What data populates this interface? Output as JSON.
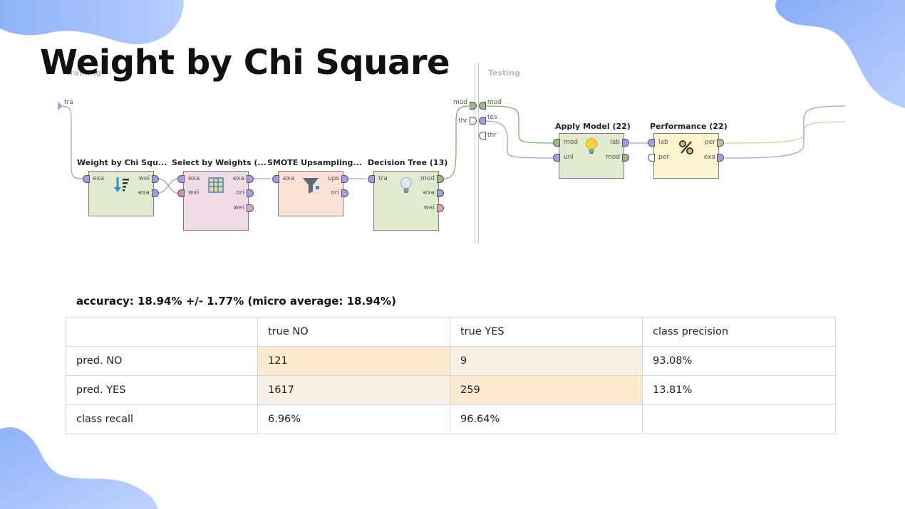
{
  "slide": {
    "title": "Weight by Chi Square"
  },
  "process": {
    "sections": {
      "training": "Training",
      "testing": "Testing"
    },
    "input_port": "tra",
    "operators": [
      {
        "name": "Weight by Chi Squ...",
        "in_ports": [
          "exa"
        ],
        "out_ports": [
          "wei",
          "exa"
        ],
        "icon": "sort-weights-icon",
        "color": "#dfeacf"
      },
      {
        "name": "Select by Weights (...",
        "in_ports": [
          "exa",
          "wei"
        ],
        "out_ports": [
          "exa",
          "ori",
          "wei"
        ],
        "icon": "table-select-icon",
        "color": "#efdbe8"
      },
      {
        "name": "SMOTE Upsampling...",
        "in_ports": [
          "exa"
        ],
        "out_ports": [
          "ups",
          "ori"
        ],
        "icon": "funnel-icon",
        "color": "#fbe1d3"
      },
      {
        "name": "Decision Tree (13)",
        "in_ports": [
          "tra"
        ],
        "out_ports": [
          "mod",
          "exa",
          "wei"
        ],
        "icon": "lightbulb-icon",
        "color": "#dfeacf"
      },
      {
        "name": "Apply Model (22)",
        "in_ports": [
          "mod",
          "unl"
        ],
        "out_ports": [
          "lab",
          "mod"
        ],
        "icon": "lightbulb-on-icon",
        "color": "#dfeacf"
      },
      {
        "name": "Performance (22)",
        "in_ports": [
          "lab",
          "per"
        ],
        "out_ports": [
          "per",
          "exa"
        ],
        "icon": "percent-icon",
        "color": "#fcf3cf"
      }
    ],
    "testing_ports_left": [
      "mod",
      "thr"
    ],
    "testing_ports_right": [
      "mod",
      "tes",
      "thr"
    ]
  },
  "results": {
    "accuracy": "accuracy: 18.94% +/- 1.77% (micro average: 18.94%)",
    "header": [
      "",
      "true NO",
      "true YES",
      "class precision"
    ],
    "rows": [
      [
        "pred. NO",
        "121",
        "9",
        "93.08%"
      ],
      [
        "pred. YES",
        "1617",
        "259",
        "13.81%"
      ],
      [
        "class recall",
        "6.96%",
        "96.64%",
        ""
      ]
    ]
  },
  "colors": {
    "blob": "#a9c4fb",
    "port_exa": "#a99be3",
    "port_mod": "#9cb98a",
    "port_wei": "#e0a6bf",
    "port_per": "#c8bd9a",
    "cell_high": "#fbe9d0",
    "cell_low": "#f8f0e4"
  }
}
